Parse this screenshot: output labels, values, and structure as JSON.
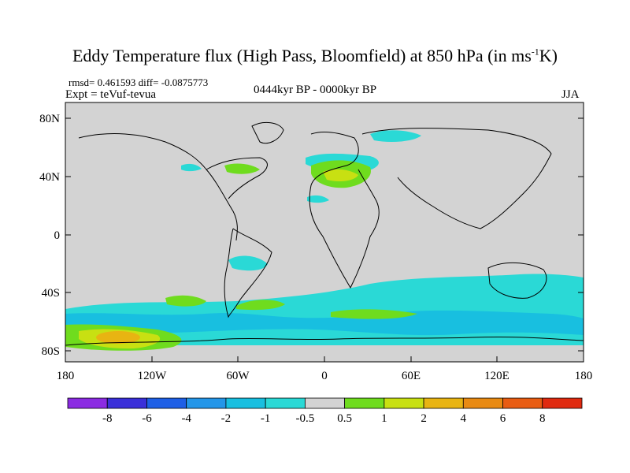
{
  "title": {
    "main": "Eddy Temperature flux (High Pass, Bloomfield) at 850 hPa (in ms",
    "sup": "-1",
    "tail": "K)"
  },
  "stats": "rmsd= 0.461593 diff= -0.0875773",
  "expt": "Expt = teVuf-tevua",
  "period": "0444kyr BP - 0000kyr BP",
  "season": "JJA",
  "lat_labels": [
    "80N",
    "40N",
    "0",
    "40S",
    "80S"
  ],
  "lon_labels": [
    "180",
    "120W",
    "60W",
    "0",
    "60E",
    "120E",
    "180"
  ],
  "colorbar": {
    "colors": [
      "#8b2be2",
      "#3a2fd9",
      "#1e5fe6",
      "#2496e8",
      "#18bfe0",
      "#2ad9d6",
      "#d3d3d3",
      "#6fdc1e",
      "#c8e012",
      "#e8b412",
      "#e88a12",
      "#e85c12",
      "#e02a10"
    ],
    "labels": [
      "-8",
      "-6",
      "-4",
      "-2",
      "-1",
      "-0.5",
      "0.5",
      "1",
      "2",
      "4",
      "6",
      "8"
    ]
  },
  "map_colors": {
    "ocean_land": "#d3d3d3",
    "coast": "#000000"
  }
}
